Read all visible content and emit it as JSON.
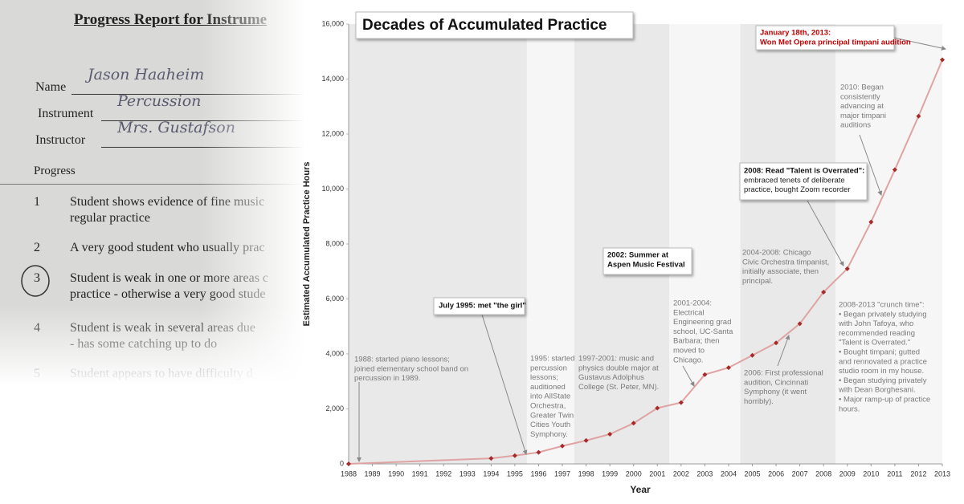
{
  "chart_data": {
    "type": "line",
    "title": "Decades of Accumulated Practice",
    "x_label": "Year",
    "y_label": "Estimated Accumulated Practice Hours",
    "x": [
      1988,
      1994,
      1995,
      1996,
      1997,
      1998,
      1999,
      2000,
      2001,
      2002,
      2003,
      2004,
      2005,
      2006,
      2007,
      2008,
      2009,
      2010,
      2011,
      2012,
      2013
    ],
    "values": [
      0,
      200,
      300,
      420,
      650,
      850,
      1080,
      1480,
      2030,
      2230,
      3250,
      3500,
      3950,
      4400,
      5100,
      6250,
      7100,
      8800,
      10700,
      12650,
      14700
    ],
    "color": "#e0a3a3",
    "marker_color": "#a52a2a",
    "xlim": [
      1988,
      2013
    ],
    "xticks": [
      1988,
      1989,
      1990,
      1991,
      1992,
      1993,
      1994,
      1995,
      1996,
      1997,
      1998,
      1999,
      2000,
      2001,
      2002,
      2003,
      2004,
      2005,
      2006,
      2007,
      2008,
      2009,
      2010,
      2011,
      2012,
      2013
    ],
    "ylim": [
      0,
      16000
    ],
    "yticks": [
      0,
      {
        "value": 2000,
        "label": "2,000"
      },
      {
        "value": 4000,
        "label": "4,000"
      },
      {
        "value": 6000,
        "label": "6,000"
      },
      {
        "value": 8000,
        "label": "8,000"
      },
      {
        "value": 10000,
        "label": "10,000"
      },
      {
        "value": 12000,
        "label": "12,000"
      },
      {
        "value": 14000,
        "label": "14,000"
      },
      {
        "value": 16000,
        "label": "16,000"
      }
    ],
    "grid": false,
    "shaded_periods": [
      [
        1988,
        1995.5
      ],
      [
        1997.5,
        2001.5
      ],
      [
        2004.5,
        2008.5
      ]
    ],
    "annotations": [
      {
        "style": "plain",
        "lines": [
          "1988: started piano lessons;",
          "joined elementary school band on",
          "percussion in 1989."
        ]
      },
      {
        "style": "box",
        "heading": [
          "July 1995: met \"the girl\""
        ]
      },
      {
        "style": "plain",
        "lines": [
          "1995: started",
          "percussion",
          "lessons;",
          "auditioned",
          "into AllState",
          "Orchestra,",
          "Greater Twin",
          "Cities Youth",
          "Symphony."
        ]
      },
      {
        "style": "plain",
        "lines": [
          "1997-2001: music and",
          "physics double major at",
          "Gustavus Adolphus",
          "College (St. Peter, MN)."
        ]
      },
      {
        "style": "box",
        "heading": [
          "2002: Summer at",
          "Aspen Music Festival"
        ]
      },
      {
        "style": "plain",
        "lines": [
          "2001-2004:",
          "Electrical",
          "Engineering grad",
          "school, UC-Santa",
          "Barbara; then",
          "moved to",
          "Chicago."
        ]
      },
      {
        "style": "plain",
        "lines": [
          "2004-2008: Chicago",
          "Civic Orchestra timpanist,",
          "initially associate, then",
          "principal."
        ]
      },
      {
        "style": "plain",
        "lines": [
          "2006: First professional",
          "audition, Cincinnati",
          "Symphony (it went",
          "horribly)."
        ]
      },
      {
        "style": "box",
        "heading": [
          "2008: Read \"Talent is Overrated\":"
        ],
        "lines": [
          "embraced tenets of deliberate",
          "practice, bought Zoom recorder"
        ]
      },
      {
        "style": "plain",
        "lines": [
          "2010: Began",
          "consistently",
          "advancing at",
          "major timpani",
          "auditions"
        ]
      },
      {
        "style": "alert",
        "heading": [
          "January 18th, 2013:",
          "Won Met Opera principal timpani audition"
        ]
      },
      {
        "style": "plain",
        "lines": [
          "2008-2013 \"crunch time\":",
          "• Began privately studying",
          "with John Tafoya, who",
          "recommended reading",
          "\"Talent is Overrated.\"",
          "• Bought timpani; gutted",
          "and rennovated a practice",
          "studio room in my house.",
          "• Began studying privately",
          "with Dean Borghesani.",
          "• Major ramp-up of practice",
          "hours."
        ]
      }
    ]
  },
  "photo": {
    "title": "Progress Report for Instrume",
    "fields": [
      {
        "label": "Name",
        "value": "Jason Haaheim"
      },
      {
        "label": "Instrument",
        "value": "Percussion"
      },
      {
        "label": "Instructor",
        "value": "Mrs. Gustafson"
      }
    ],
    "section": "Progress",
    "items": [
      {
        "number": "1",
        "lines": [
          "Student shows evidence of fine music",
          "regular practice"
        ]
      },
      {
        "number": "2",
        "lines": [
          "A very good student who usually prac"
        ]
      },
      {
        "number": "3",
        "lines": [
          "Student is weak in one or more areas c",
          "practice - otherwise a very good stude"
        ]
      },
      {
        "number": "4",
        "lines": [
          "Student is weak in several areas due",
          "- has some catching up to do"
        ]
      },
      {
        "number": "5",
        "lines": [
          "Student appears to have difficulty d"
        ]
      }
    ]
  }
}
